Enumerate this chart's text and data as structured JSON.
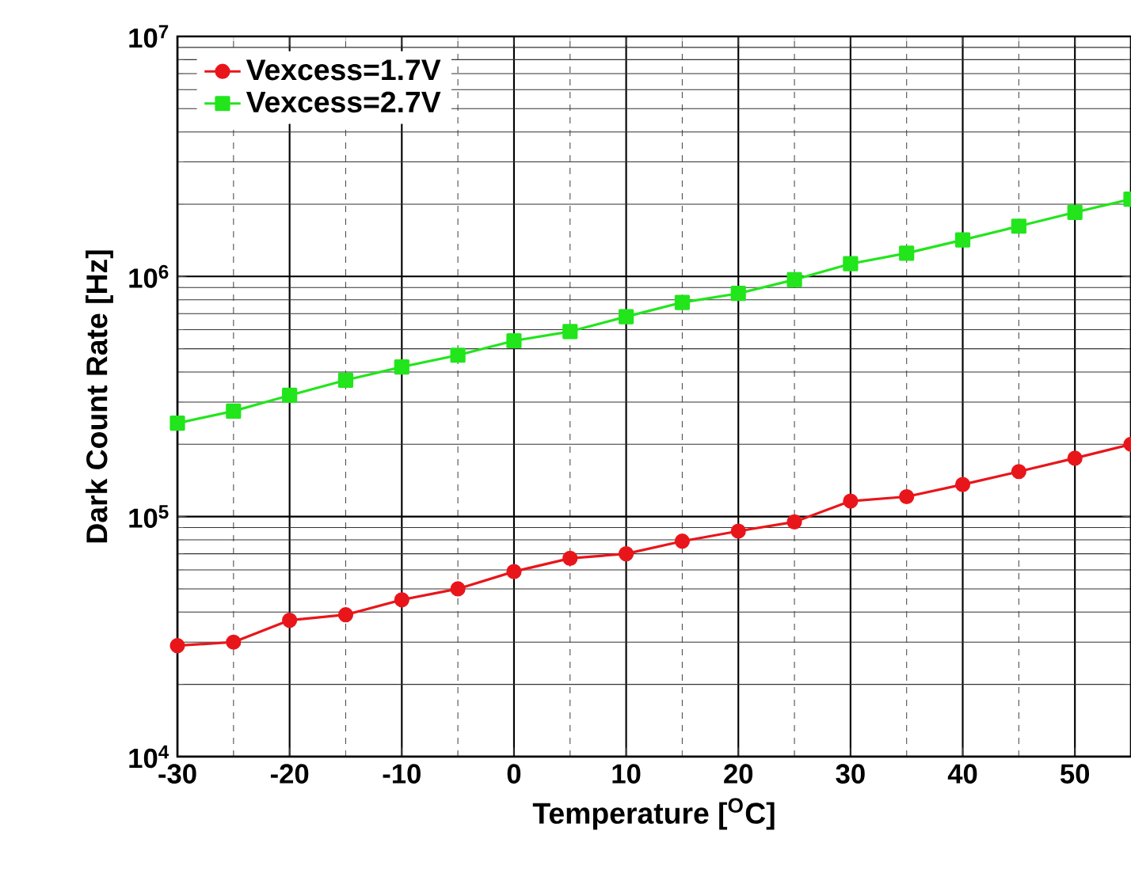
{
  "chart_data": {
    "type": "line",
    "xlabel": "Temperature [$^{O}$C]",
    "ylabel": "Dark Count Rate [Hz]",
    "x": [
      -30,
      -25,
      -20,
      -15,
      -10,
      -5,
      0,
      5,
      10,
      15,
      20,
      25,
      30,
      35,
      40,
      45,
      50,
      55
    ],
    "series": [
      {
        "name": "Vexcess=1.7V",
        "color": "#e8161b",
        "marker": "circle",
        "values": [
          29000,
          30000,
          37000,
          39000,
          45000,
          50000,
          59000,
          67000,
          70000,
          79000,
          87000,
          95000,
          116000,
          121000,
          136000,
          154000,
          175000,
          200000
        ]
      },
      {
        "name": "Vexcess=2.7V",
        "color": "#22e51c",
        "marker": "square",
        "values": [
          245000,
          275000,
          320000,
          370000,
          420000,
          470000,
          540000,
          590000,
          680000,
          780000,
          850000,
          970000,
          1130000,
          1250000,
          1420000,
          1620000,
          1850000,
          2100000
        ]
      }
    ],
    "xlim": [
      -30,
      55
    ],
    "xticks": [
      -30,
      -20,
      -10,
      0,
      10,
      20,
      30,
      40,
      50
    ],
    "ylim": [
      10000,
      10000000
    ],
    "yticks": [
      {
        "value": 10000,
        "label": "10$^{4}$"
      },
      {
        "value": 100000,
        "label": "10$^{5}$"
      },
      {
        "value": 1000000,
        "label": "10$^{6}$"
      },
      {
        "value": 10000000,
        "label": "10$^{7}$"
      }
    ],
    "log": "y",
    "grid": true,
    "legend": "top left",
    "line_style": "solid"
  }
}
